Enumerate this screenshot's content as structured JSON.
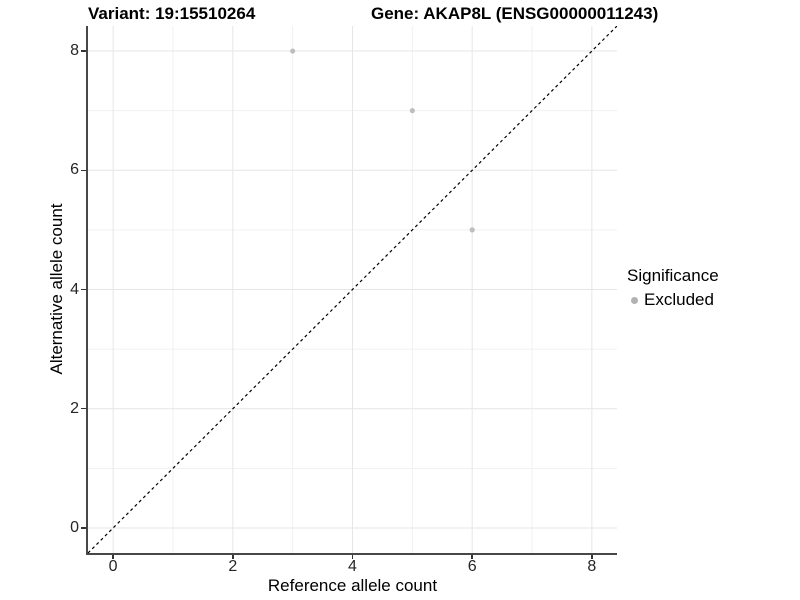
{
  "header": {
    "variant_title": "Variant: 19:15510264",
    "gene_title": "Gene: AKAP8L (ENSG00000011243)"
  },
  "chart_data": {
    "type": "scatter",
    "xlabel": "Reference allele count",
    "ylabel": "Alternative allele count",
    "xlim": [
      -0.42,
      8.42
    ],
    "ylim": [
      -0.42,
      8.42
    ],
    "x_ticks": [
      0,
      2,
      4,
      6,
      8
    ],
    "y_ticks": [
      0,
      2,
      4,
      6,
      8
    ],
    "x_minor_ticks": [
      1,
      3,
      5,
      7
    ],
    "y_minor_ticks": [
      1,
      3,
      5,
      7
    ],
    "grid": true,
    "series": [
      {
        "name": "Excluded",
        "color": "#bebebe",
        "points": [
          {
            "x": 3,
            "y": 8
          },
          {
            "x": 5,
            "y": 7
          },
          {
            "x": 6,
            "y": 5
          }
        ]
      }
    ],
    "reference_line": {
      "kind": "identity-y-equals-x",
      "style": "dashed",
      "color": "#000000"
    },
    "legend": {
      "title": "Significance",
      "position": "right",
      "items": [
        {
          "label": "Excluded",
          "color": "#b2b2b2"
        }
      ]
    },
    "colors": {
      "grid_major": "#e6e6e6",
      "grid_minor": "#f1f1f1",
      "axis_line": "#474747",
      "tick_label": "#262626"
    }
  }
}
